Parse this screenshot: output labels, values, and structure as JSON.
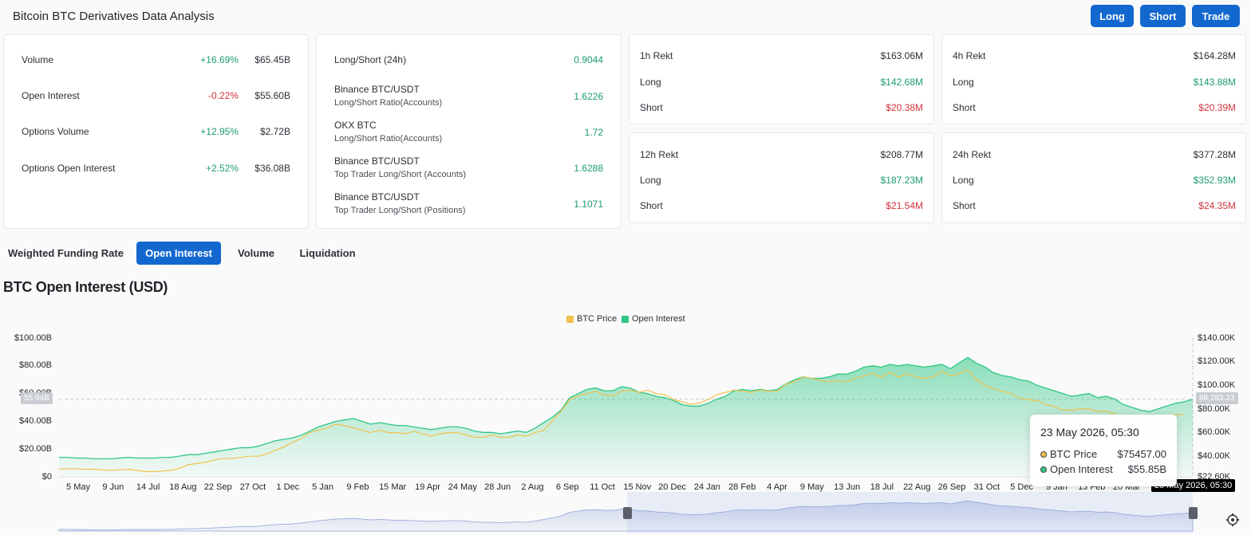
{
  "app": {
    "title": "Bitcoin BTC Derivatives Data Analysis"
  },
  "actions": {
    "long": "Long",
    "short": "Short",
    "trade": "Trade"
  },
  "overview": [
    {
      "label": "Volume",
      "change": "+16.69%",
      "value": "$65.45B",
      "dir": "up"
    },
    {
      "label": "Open Interest",
      "change": "-0.22%",
      "value": "$55.60B",
      "dir": "down"
    },
    {
      "label": "Options Volume",
      "change": "+12.95%",
      "value": "$2.72B",
      "dir": "up"
    },
    {
      "label": "Options Open Interest",
      "change": "+2.52%",
      "value": "$36.08B",
      "dir": "up"
    }
  ],
  "ratios": [
    {
      "label": "Long/Short (24h)",
      "sub": "",
      "value": "0.9044"
    },
    {
      "label": "Binance BTC/USDT",
      "sub": "Long/Short Ratio(Accounts)",
      "value": "1.6226"
    },
    {
      "label": "OKX BTC",
      "sub": "Long/Short Ratio(Accounts)",
      "value": "1.72"
    },
    {
      "label": "Binance BTC/USDT",
      "sub": "Top Trader Long/Short (Accounts)",
      "value": "1.6288"
    },
    {
      "label": "Binance BTC/USDT",
      "sub": "Top Trader Long/Short (Positions)",
      "value": "1.1071"
    }
  ],
  "rekt": [
    {
      "title": "1h Rekt",
      "total": "$163.06M",
      "long_label": "Long",
      "long": "$142.68M",
      "short_label": "Short",
      "short": "$20.38M"
    },
    {
      "title": "4h Rekt",
      "total": "$164.28M",
      "long_label": "Long",
      "long": "$143.88M",
      "short_label": "Short",
      "short": "$20.39M"
    },
    {
      "title": "12h Rekt",
      "total": "$208.77M",
      "long_label": "Long",
      "long": "$187.23M",
      "short_label": "Short",
      "short": "$21.54M"
    },
    {
      "title": "24h Rekt",
      "total": "$377.28M",
      "long_label": "Long",
      "long": "$352.93M",
      "short_label": "Short",
      "short": "$24.35M"
    }
  ],
  "tabs": [
    {
      "label": "Weighted Funding Rate",
      "active": false
    },
    {
      "label": "Open Interest",
      "active": true
    },
    {
      "label": "Volume",
      "active": false
    },
    {
      "label": "Liquidation",
      "active": false
    }
  ],
  "chart_title": "BTC Open Interest (USD)",
  "tooltip": {
    "date": "23 May 2026, 05:30",
    "price_label": "BTC Price",
    "price_value": "$75457.00",
    "oi_label": "Open Interest",
    "oi_value": "$55.85B"
  },
  "cursor": {
    "left_label": "55.94B",
    "right_label": "88,283.23",
    "date_label": "23 May 2026, 05:30"
  },
  "colors": {
    "accent": "#1368d0",
    "price": "#f0c14b",
    "open_interest": "#2fc785",
    "up": "#1d9c6a",
    "down": "#d2323a"
  },
  "chart_data": {
    "type": "area",
    "title": "BTC Open Interest (USD)",
    "legend": [
      "BTC Price",
      "Open Interest"
    ],
    "legend_position": "top-center",
    "grid": false,
    "x_ticks": [
      "5 May",
      "9 Jun",
      "14 Jul",
      "18 Aug",
      "22 Sep",
      "27 Oct",
      "1 Dec",
      "5 Jan",
      "9 Feb",
      "15 Mar",
      "19 Apr",
      "24 May",
      "28 Jun",
      "2 Aug",
      "6 Sep",
      "11 Oct",
      "15 Nov",
      "20 Dec",
      "24 Jan",
      "28 Feb",
      "4 Apr",
      "9 May",
      "13 Jun",
      "18 Jul",
      "22 Aug",
      "26 Sep",
      "31 Oct",
      "5 Dec",
      "9 Jan",
      "13 Feb",
      "20 Mar"
    ],
    "y_left": {
      "label": "",
      "ticks": [
        "$0",
        "$20.00B",
        "$40.00B",
        "$60.00B",
        "$80.00B",
        "$100.00B"
      ],
      "range": [
        0,
        100
      ]
    },
    "y_right": {
      "label": "",
      "ticks": [
        "$22.60K",
        "$40.00K",
        "$60.00K",
        "$80.00K",
        "$100.00K",
        "$120.00K",
        "$140.00K"
      ],
      "range": [
        22.6,
        140
      ]
    },
    "series": [
      {
        "name": "Open Interest",
        "axis": "left",
        "unit": "B USD",
        "values": [
          14,
          14,
          13.5,
          13.5,
          13,
          13,
          13,
          13.5,
          14,
          13.5,
          13.5,
          13.5,
          14,
          14,
          15,
          16,
          16,
          17,
          18,
          19,
          20,
          21,
          21,
          22,
          24,
          26,
          27,
          28,
          30,
          33,
          36,
          38,
          40,
          41,
          42,
          40,
          38,
          39,
          38,
          37,
          37,
          36,
          35,
          34,
          35,
          36,
          36,
          35,
          33,
          32,
          32,
          31,
          32,
          33,
          32,
          35,
          39,
          43,
          48,
          57,
          60,
          63,
          64,
          62,
          62,
          65,
          64,
          61,
          60,
          58,
          57,
          55,
          52,
          51,
          51,
          53,
          56,
          58,
          62,
          63,
          62,
          63,
          62,
          63,
          67,
          70,
          72,
          71,
          71,
          72,
          74,
          74,
          76,
          79,
          80,
          79,
          81,
          80,
          81,
          80,
          79,
          80,
          81,
          78,
          82,
          86,
          82,
          79,
          75,
          73,
          72,
          70,
          69,
          66,
          64,
          62,
          60,
          58,
          59,
          60,
          57,
          58,
          56,
          52,
          50,
          48,
          47,
          49,
          51,
          53,
          54,
          55.85
        ]
      },
      {
        "name": "BTC Price",
        "axis": "right",
        "unit": "K USD",
        "values": [
          29,
          29.5,
          29.5,
          29,
          29,
          28.5,
          28,
          28.5,
          29,
          28,
          27,
          27,
          27.5,
          28,
          30,
          33,
          34,
          35,
          37,
          38,
          38,
          39,
          40,
          40,
          42,
          45,
          48,
          52,
          55,
          60,
          62,
          64,
          67,
          66,
          64,
          62,
          60,
          62,
          60,
          60,
          59,
          61,
          59,
          57,
          59,
          60,
          60,
          58,
          56,
          56,
          58,
          56,
          56,
          58,
          57,
          60,
          62,
          70,
          78,
          88,
          91,
          93,
          95,
          92,
          91,
          95,
          96,
          94,
          96,
          93,
          92,
          88,
          86,
          84,
          85,
          88,
          92,
          94,
          96,
          95,
          94,
          96,
          95,
          95,
          101,
          103,
          107,
          106,
          104,
          103,
          104,
          103,
          106,
          108,
          110,
          107,
          111,
          107,
          110,
          107,
          106,
          107,
          112,
          108,
          110,
          113,
          105,
          100,
          97,
          95,
          93,
          89,
          88,
          87,
          84,
          82,
          79,
          79,
          80,
          80,
          78,
          78,
          76,
          72,
          70,
          70,
          72,
          73,
          74,
          75,
          75.457
        ]
      }
    ],
    "cursor_values": {
      "open_interest": "55.94B",
      "btc_price": "88,283.23"
    }
  }
}
